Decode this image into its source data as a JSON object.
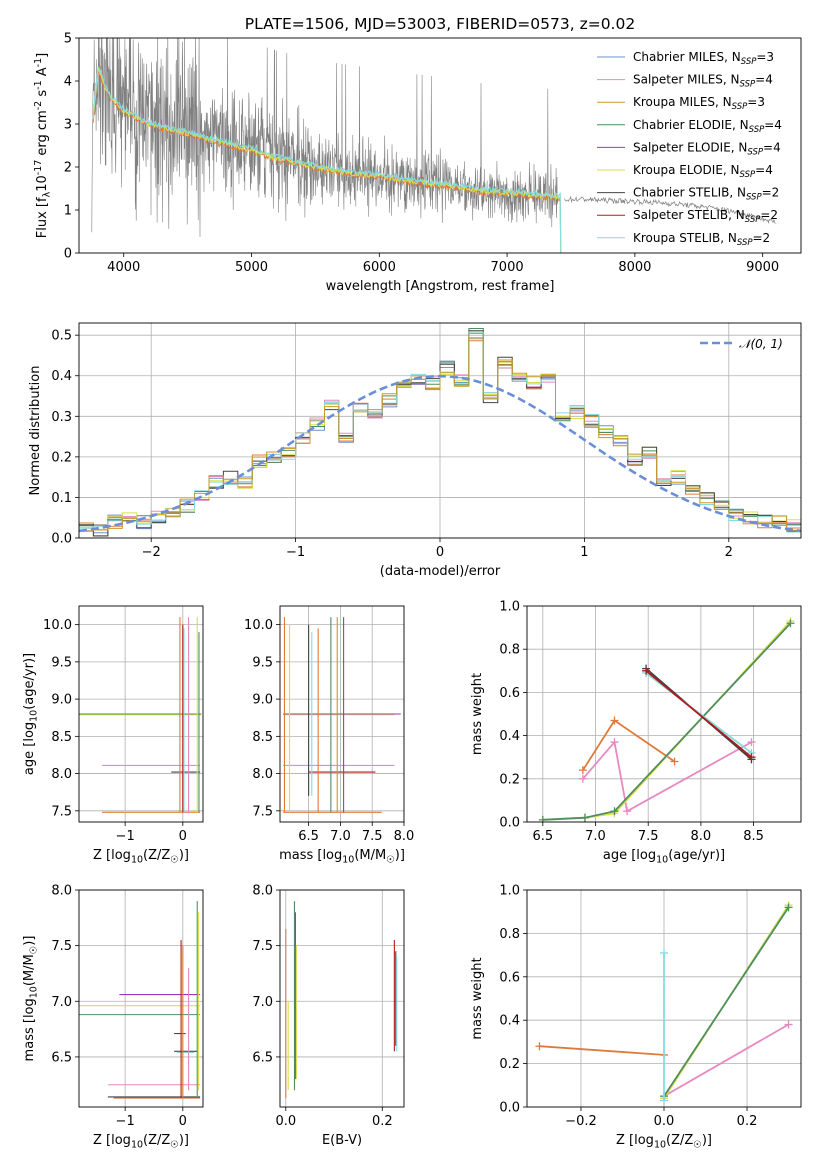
{
  "figure_title": "PLATE=1506, MJD=53003, FIBERID=0573, z=0.02",
  "colors": {
    "Chabrier MILES": "#6f8fcf",
    "Salpeter MILES": "#e889c2",
    "Kroupa MILES": "#c9972a",
    "Chabrier ELODIE": "#4f8f5f",
    "Salpeter ELODIE": "#9b38c0",
    "Kroupa ELODIE": "#d9df4a",
    "Chabrier STELIB": "#444444",
    "Salpeter STELIB": "#b01a1a",
    "Kroupa STELIB": "#85dce0",
    "data": "#808080",
    "orange": "#e07a3a",
    "normal": "#6a8fd8"
  },
  "chart_data": [
    {
      "id": "spectrum",
      "type": "line",
      "title": "PLATE=1506, MJD=53003, FIBERID=0573, z=0.02",
      "xlabel": "wavelength [Angstrom, rest frame]",
      "ylabel": "Flux [f$_\\lambda$10$^{-17}$ erg cm$^{-2}$ s$^{-1}$ A$^{-1}$]",
      "xlim": [
        3650,
        9300
      ],
      "ylim": [
        0,
        5
      ],
      "xticks": [
        "4000",
        "5000",
        "6000",
        "7000",
        "8000",
        "9000"
      ],
      "yticks": [
        "0",
        "1",
        "2",
        "3",
        "4",
        "5"
      ],
      "legend_position": "upper-right",
      "legend": [
        {
          "name": "Chabrier MILES",
          "nssp": "3"
        },
        {
          "name": "Salpeter MILES",
          "nssp": "4"
        },
        {
          "name": "Kroupa MILES",
          "nssp": "3"
        },
        {
          "name": "Chabrier ELODIE",
          "nssp": "4"
        },
        {
          "name": "Salpeter ELODIE",
          "nssp": "4"
        },
        {
          "name": "Kroupa ELODIE",
          "nssp": "4"
        },
        {
          "name": "Chabrier STELIB",
          "nssp": "2"
        },
        {
          "name": "Salpeter STELIB",
          "nssp": "2"
        },
        {
          "name": "Kroupa STELIB",
          "nssp": "2"
        }
      ],
      "continuum": {
        "x": [
          3750,
          3800,
          3850,
          3900,
          4000,
          4100,
          4200,
          4400,
          4600,
          4800,
          5000,
          5200,
          5500,
          5800,
          6000,
          6300,
          6600,
          6800,
          7000,
          7200,
          7400
        ],
        "y": [
          2.8,
          4.3,
          3.9,
          3.6,
          3.3,
          3.15,
          3.0,
          2.85,
          2.7,
          2.55,
          2.4,
          2.2,
          2.0,
          1.85,
          1.8,
          1.65,
          1.55,
          1.45,
          1.4,
          1.35,
          1.3
        ]
      },
      "data_tail": {
        "x": [
          7450,
          7600,
          7800,
          8000,
          8200,
          8400,
          8600,
          8800,
          9000,
          9100
        ],
        "y": [
          1.25,
          1.25,
          1.22,
          1.2,
          1.17,
          1.12,
          1.05,
          0.95,
          0.8,
          0.7
        ]
      },
      "noise_start": 3750,
      "noise_end": 7400
    },
    {
      "id": "residuals",
      "type": "histogram",
      "xlabel": "(data-model)/error",
      "ylabel": "Normed distribution",
      "xlim": [
        -2.5,
        2.5
      ],
      "ylim": [
        0,
        0.53
      ],
      "xticks": [
        "−2",
        "−1",
        "0",
        "1",
        "2"
      ],
      "yticks": [
        "0.0",
        "0.1",
        "0.2",
        "0.3",
        "0.4",
        "0.5"
      ],
      "legend": "𝒩(0, 1)",
      "legend_position": "upper-right",
      "bin_width": 0.1,
      "bin_start": -2.5,
      "values": [
        0.02,
        0.02,
        0.04,
        0.05,
        0.04,
        0.05,
        0.06,
        0.08,
        0.11,
        0.14,
        0.15,
        0.14,
        0.19,
        0.2,
        0.21,
        0.25,
        0.28,
        0.33,
        0.25,
        0.32,
        0.3,
        0.34,
        0.37,
        0.39,
        0.38,
        0.42,
        0.39,
        0.5,
        0.35,
        0.43,
        0.4,
        0.38,
        0.39,
        0.3,
        0.31,
        0.29,
        0.26,
        0.24,
        0.19,
        0.21,
        0.14,
        0.15,
        0.12,
        0.1,
        0.08,
        0.06,
        0.05,
        0.04,
        0.04,
        0.03
      ]
    },
    {
      "id": "z-age",
      "type": "scatter",
      "xlabel": "Z [log$_{10}$(Z/Z$_\\odot$)]",
      "ylabel": "age  [log$_{10}$(age/yr)]",
      "xlim": [
        -1.8,
        0.35
      ],
      "ylim": [
        7.35,
        10.25
      ],
      "xticks": [
        "−1",
        "0"
      ],
      "yticks": [
        "7.5",
        "8.0",
        "8.5",
        "9.0",
        "9.5",
        "10.0"
      ]
    },
    {
      "id": "mass-age",
      "type": "scatter",
      "xlabel": "mass [log$_{10}$(M/M$_\\odot$)]",
      "ylabel": "",
      "xlim": [
        6.05,
        8.0
      ],
      "ylim": [
        7.35,
        10.25
      ],
      "xticks": [
        "6.5",
        "7.0",
        "7.5",
        "8.0"
      ],
      "yticks": [
        "7.5",
        "8.0",
        "8.5",
        "9.0",
        "9.5",
        "10.0"
      ]
    },
    {
      "id": "age-weight",
      "type": "line",
      "xlabel": "age  [log$_{10}$(age/yr)]",
      "ylabel": "mass weight",
      "xlim": [
        6.35,
        8.95
      ],
      "ylim": [
        0,
        1.0
      ],
      "xticks": [
        "6.5",
        "7.0",
        "7.5",
        "8.0",
        "8.5"
      ],
      "yticks": [
        "0.0",
        "0.2",
        "0.4",
        "0.6",
        "0.8",
        "1.0"
      ],
      "series": [
        {
          "color": "orange",
          "x": [
            6.88,
            7.18,
            7.75
          ],
          "y": [
            0.24,
            0.47,
            0.28
          ]
        },
        {
          "color": "Salpeter MILES",
          "x": [
            6.88,
            7.18,
            7.3,
            8.48
          ],
          "y": [
            0.2,
            0.37,
            0.05,
            0.37
          ]
        },
        {
          "color": "Kroupa ELODIE",
          "x": [
            6.5,
            6.9,
            7.18,
            8.85
          ],
          "y": [
            0.01,
            0.02,
            0.04,
            0.93
          ]
        },
        {
          "color": "Chabrier ELODIE",
          "x": [
            6.5,
            6.9,
            7.18,
            8.85
          ],
          "y": [
            0.01,
            0.02,
            0.05,
            0.92
          ]
        },
        {
          "color": "Chabrier STELIB",
          "x": [
            7.48,
            8.48
          ],
          "y": [
            0.71,
            0.29
          ]
        },
        {
          "color": "Kroupa STELIB",
          "x": [
            7.48,
            8.48
          ],
          "y": [
            0.69,
            0.32
          ]
        },
        {
          "color": "Salpeter STELIB",
          "x": [
            7.48,
            8.48
          ],
          "y": [
            0.7,
            0.3
          ]
        }
      ]
    },
    {
      "id": "z-mass",
      "type": "scatter",
      "xlabel": "Z [log$_{10}$(Z/Z$_\\odot$)]",
      "ylabel": "mass [log$_{10}$(M/M$_\\odot$)]",
      "xlim": [
        -1.8,
        0.35
      ],
      "ylim": [
        6.05,
        8.0
      ],
      "xticks": [
        "−1",
        "0"
      ],
      "yticks": [
        "6.5",
        "7.0",
        "7.5",
        "8.0"
      ]
    },
    {
      "id": "ebv-mass",
      "type": "scatter",
      "xlabel": "E(B-V)",
      "ylabel": "",
      "xlim": [
        -0.012,
        0.245
      ],
      "ylim": [
        6.05,
        8.0
      ],
      "xticks": [
        "0.0",
        "0.2"
      ],
      "yticks": [
        "6.5",
        "7.0",
        "7.5",
        "8.0"
      ]
    },
    {
      "id": "z-weight",
      "type": "line",
      "xlabel": "Z [log$_{10}$(Z/Z$_\\odot$)]",
      "ylabel": "mass weight",
      "xlim": [
        -0.33,
        0.33
      ],
      "ylim": [
        0,
        1.0
      ],
      "xticks": [
        "−0.2",
        "0.0",
        "0.2"
      ],
      "yticks": [
        "0.0",
        "0.2",
        "0.4",
        "0.6",
        "0.8",
        "1.0"
      ],
      "series": [
        {
          "color": "orange",
          "x": [
            -0.3,
            0.0
          ],
          "y": [
            0.28,
            0.24
          ]
        },
        {
          "color": "Salpeter MILES",
          "x": [
            0.0,
            0.3
          ],
          "y": [
            0.05,
            0.38
          ]
        },
        {
          "color": "Kroupa ELODIE",
          "x": [
            0.0,
            0.3
          ],
          "y": [
            0.04,
            0.93
          ]
        },
        {
          "color": "Chabrier ELODIE",
          "x": [
            0.0,
            0.3
          ],
          "y": [
            0.05,
            0.92
          ]
        },
        {
          "color": "Kroupa STELIB",
          "x": [
            0.0,
            0.0
          ],
          "y": [
            0.03,
            0.71
          ]
        }
      ]
    }
  ]
}
